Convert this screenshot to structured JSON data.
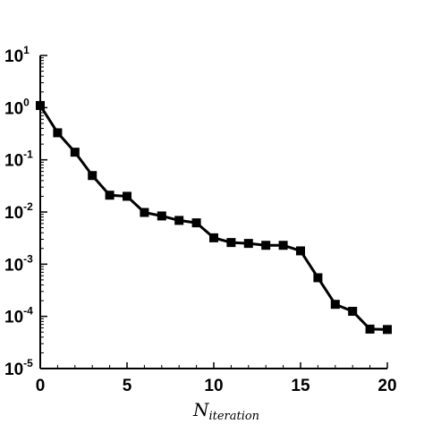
{
  "chart_data": {
    "type": "line",
    "title": "",
    "xlabel": {
      "base": "N",
      "subscript": "iteration"
    },
    "ylabel": "",
    "xlim": [
      0,
      20
    ],
    "ylim": [
      1e-05,
      10
    ],
    "yscale": "log",
    "grid": false,
    "marker": "square",
    "line_color": "#000000",
    "x_ticks": [
      0,
      5,
      10,
      15,
      20
    ],
    "x_tick_labels": [
      "0",
      "5",
      "10",
      "15",
      "20"
    ],
    "y_ticks": [
      {
        "value": 10,
        "base": "10",
        "exp": "1"
      },
      {
        "value": 1,
        "base": "10",
        "exp": "0"
      },
      {
        "value": 0.1,
        "base": "10",
        "exp": "-1"
      },
      {
        "value": 0.01,
        "base": "10",
        "exp": "-2"
      },
      {
        "value": 0.001,
        "base": "10",
        "exp": "-3"
      },
      {
        "value": 0.0001,
        "base": "10",
        "exp": "-4"
      },
      {
        "value": 1e-05,
        "base": "10",
        "exp": "-5"
      }
    ],
    "series": [
      {
        "x": [
          0,
          1,
          2,
          3,
          4,
          5,
          6,
          7,
          8,
          9,
          10,
          11,
          12,
          13,
          14,
          15,
          16,
          17,
          18,
          19,
          20
        ],
        "y": [
          1.1,
          0.33,
          0.14,
          0.05,
          0.021,
          0.02,
          0.0098,
          0.0084,
          0.0069,
          0.0062,
          0.0032,
          0.0026,
          0.0025,
          0.0023,
          0.0023,
          0.0018,
          0.00055,
          0.00017,
          0.000125,
          5.7e-05,
          5.6e-05
        ]
      }
    ]
  }
}
